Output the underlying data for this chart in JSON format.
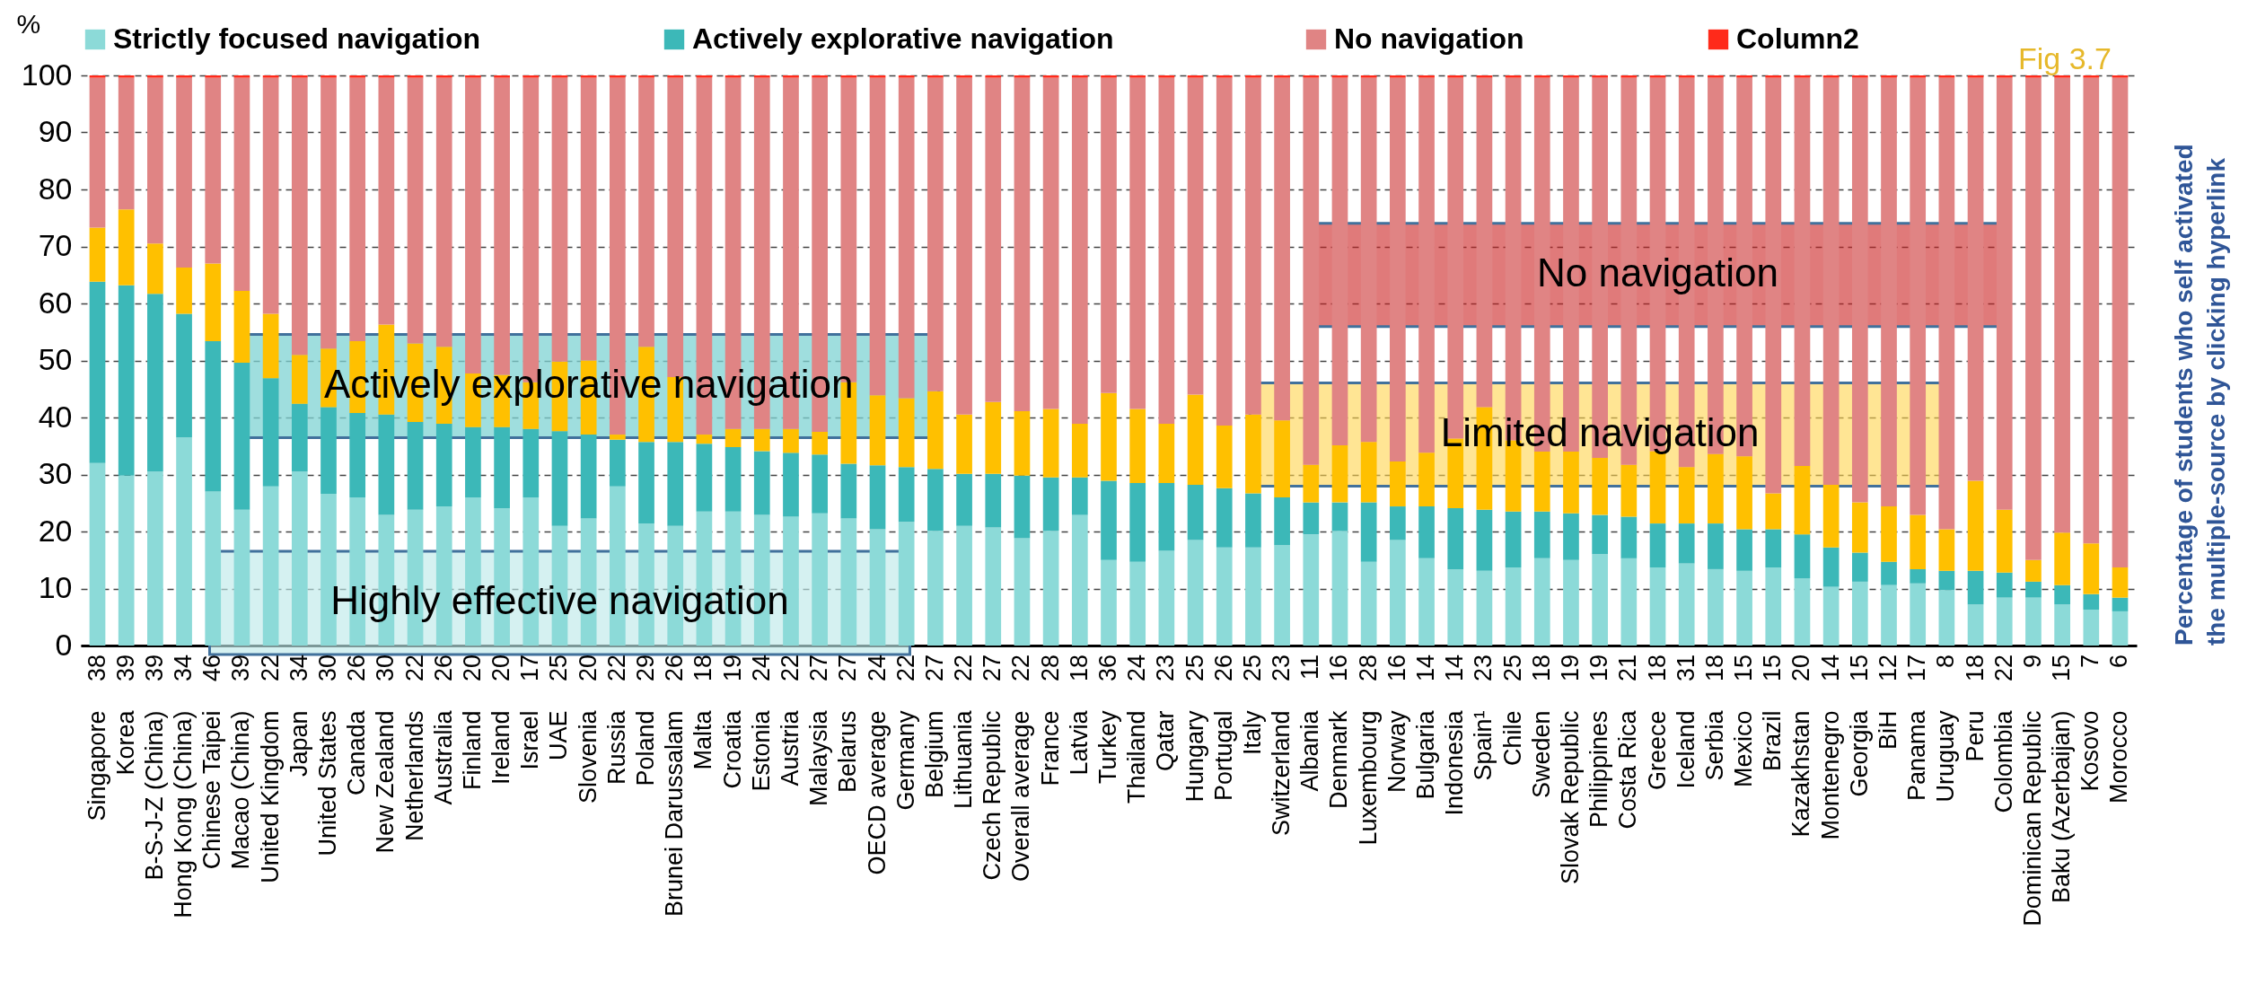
{
  "chart_data": {
    "type": "bar",
    "stacked": true,
    "ylabel": "%",
    "ylim": [
      0,
      100
    ],
    "yticks": [
      0,
      10,
      20,
      30,
      40,
      50,
      60,
      70,
      80,
      90,
      100
    ],
    "grid": "y",
    "legend": "top",
    "categories": [
      "Singapore",
      "Korea",
      "B-S-J-Z (China)",
      "Hong Kong (China)",
      "Chinese Taipei",
      "Macao (China)",
      "United Kingdom",
      "Japan",
      "United States",
      "Canada",
      "New Zealand",
      "Netherlands",
      "Australia",
      "Finland",
      "Ireland",
      "Israel",
      "UAE",
      "Slovenia",
      "Russia",
      "Poland",
      "Brunei Darussalam",
      "Malta",
      "Croatia",
      "Estonia",
      "Austria",
      "Malaysia",
      "Belarus",
      "OECD average",
      "Germany",
      "Belgium",
      "Lithuania",
      "Czech Republic",
      "Overall average",
      "France",
      "Latvia",
      "Turkey",
      "Thailand",
      "Qatar",
      "Hungary",
      "Portugal",
      "Italy",
      "Switzerland",
      "Albania",
      "Denmark",
      "Luxembourg",
      "Norway",
      "Bulgaria",
      "Indonesia",
      "Spain¹",
      "Chile",
      "Sweden",
      "Slovak Republic",
      "Philippines",
      "Costa Rica",
      "Greece",
      "Iceland",
      "Serbia",
      "Mexico",
      "Brazil",
      "Kazakhstan",
      "Montenegro",
      "Georgia",
      "BiH",
      "Panama",
      "Uruguay",
      "Peru",
      "Colombia",
      "Dominican Republic",
      "Baku (Azerbaijan)",
      "Kosovo",
      "Morocco"
    ],
    "series": [
      {
        "name": "Strictly focused navigation",
        "color": "#8cdad8",
        "values": [
          32,
          29.8,
          30.5,
          36.5,
          27,
          23.8,
          27.9,
          30.5,
          26.6,
          26,
          22.9,
          23.8,
          24.4,
          26,
          24.1,
          26,
          21,
          22.3,
          27.9,
          21.4,
          21,
          23.5,
          23.5,
          22.9,
          22.6,
          23.2,
          22.3,
          20.4,
          21.7,
          20.1,
          21,
          20.7,
          18.8,
          20.1,
          22.9,
          15,
          14.7,
          16.6,
          18.5,
          17.2,
          17.2,
          17.6,
          19.5,
          20.1,
          14.7,
          18.5,
          15.3,
          13.4,
          13.1,
          13.7,
          15.3,
          15,
          16,
          15.3,
          13.7,
          14.4,
          13.4,
          13.1,
          13.7,
          11.8,
          10.3,
          11.2,
          10.6,
          10.9,
          9.7,
          7.2,
          8.4,
          8.4,
          7.2,
          6.3,
          6
        ]
      },
      {
        "name": "Actively  explorative navigation",
        "color": "#3cb8b8",
        "values": [
          31.8,
          33.4,
          31.2,
          21.7,
          26.4,
          25.8,
          19,
          11.9,
          15.2,
          14.8,
          17.6,
          15.4,
          14.5,
          12.3,
          14.2,
          12,
          16.6,
          14.7,
          8.2,
          14.3,
          14.7,
          11.9,
          11.3,
          11.2,
          11.2,
          10.3,
          9.6,
          11.2,
          9.6,
          10.9,
          9.1,
          9.4,
          11,
          9.4,
          6.6,
          13.9,
          13.8,
          11.9,
          9.7,
          10.4,
          9.5,
          8.4,
          5.6,
          5,
          10.4,
          5.9,
          9.1,
          10.7,
          10.7,
          9.8,
          8.2,
          8.2,
          6.9,
          7.3,
          7.7,
          7,
          8,
          7.3,
          6.7,
          7.7,
          6.9,
          5.1,
          4.1,
          2.5,
          3.4,
          5.9,
          4.4,
          2.8,
          3.4,
          2.7,
          2.4
        ]
      },
      {
        "color": "#ffc000",
        "values": [
          9.5,
          13.3,
          8.8,
          8.1,
          13.6,
          12.6,
          11.3,
          8.6,
          10.3,
          12.6,
          15.8,
          13.8,
          13.5,
          9.4,
          9.2,
          8.2,
          12.2,
          13,
          0.9,
          16.7,
          11.4,
          1.6,
          3.2,
          3.9,
          4.2,
          4,
          14.3,
          12.3,
          12.1,
          13.6,
          10.4,
          12.6,
          11.3,
          12,
          9.4,
          15.4,
          13,
          10.4,
          15.8,
          11,
          13.8,
          13.5,
          6.6,
          10,
          10.6,
          7.9,
          9.4,
          12.2,
          18,
          12.5,
          10.5,
          10.8,
          10,
          9.1,
          12.7,
          9.9,
          12.2,
          12.8,
          6.3,
          12,
          11,
          8.8,
          9.7,
          9.5,
          7.3,
          15.8,
          11,
          3.8,
          9.2,
          8.9,
          5.3
        ]
      },
      {
        "name": "No navigation",
        "color": "#e08484",
        "values": [
          26.3,
          23.1,
          29.1,
          33.3,
          32.6,
          37.4,
          41.4,
          48.6,
          47.5,
          46.2,
          43.3,
          46.6,
          47.2,
          51.9,
          52.1,
          53.4,
          49.8,
          49.6,
          62.6,
          47.2,
          52.5,
          62.6,
          61.6,
          61.6,
          61.6,
          62.1,
          53.4,
          55.7,
          56.2,
          55,
          59.1,
          56.9,
          58.5,
          58.1,
          60.7,
          55.3,
          58.1,
          60.7,
          55.6,
          61,
          59.1,
          60.1,
          67.9,
          64.5,
          63.9,
          67.3,
          65.8,
          63.3,
          57.8,
          63.6,
          65.6,
          65.6,
          66.7,
          67.9,
          65.5,
          68.3,
          66,
          66.4,
          72.9,
          68.1,
          71.4,
          74.5,
          75.2,
          76.7,
          79.2,
          70.7,
          75.8,
          84.6,
          79.8,
          81.7,
          85.9
        ]
      },
      {
        "name": "Column2",
        "color": "#ff2a1a",
        "values": [
          0.4,
          0.4,
          0.4,
          0.4,
          0.4,
          0.4,
          0.4,
          0.4,
          0.4,
          0.4,
          0.4,
          0.4,
          0.4,
          0.4,
          0.4,
          0.4,
          0.4,
          0.4,
          0.4,
          0.4,
          0.4,
          0.4,
          0.4,
          0.4,
          0.4,
          0.4,
          0.4,
          0.4,
          0.4,
          0.4,
          0.4,
          0.4,
          0.4,
          0.4,
          0.4,
          0.4,
          0.4,
          0.4,
          0.4,
          0.4,
          0.4,
          0.4,
          0.4,
          0.4,
          0.4,
          0.4,
          0.4,
          0.4,
          0.4,
          0.4,
          0.4,
          0.4,
          0.4,
          0.4,
          0.4,
          0.4,
          0.4,
          0.4,
          0.4,
          0.4,
          0.4,
          0.4,
          0.4,
          0.4,
          0.4,
          0.4,
          0.4,
          0.4,
          0.4,
          0.4,
          0.4
        ]
      }
    ],
    "annotations": [
      "Fig 3.7",
      "Percentage of students who self activated\nthe multiple-source by clicking hyperlink",
      "Actively explorative navigation",
      "No navigation",
      "Limited navigation",
      "Highly effective navigation",
      "38",
      "39",
      "39",
      "34",
      "46",
      "39",
      "22",
      "34",
      "30",
      "26",
      "30",
      "22",
      "26",
      "20",
      "20",
      "17",
      "25",
      "20",
      "22",
      "29",
      "26",
      "18",
      "19",
      "24",
      "22",
      "27",
      "27",
      "24",
      "22",
      "27",
      "22",
      "27",
      "22",
      "28",
      "18",
      "36",
      "24",
      "23",
      "25",
      "26",
      "25",
      "23",
      "11",
      "16",
      "28",
      "16",
      "14",
      "14",
      "23",
      "25",
      "18",
      "19",
      "19",
      "21",
      "18",
      "31",
      "18",
      "15",
      "15",
      "20",
      "14",
      "15",
      "12",
      "17",
      "8",
      "18",
      "22",
      "9",
      "15",
      "7",
      "6"
    ]
  }
}
